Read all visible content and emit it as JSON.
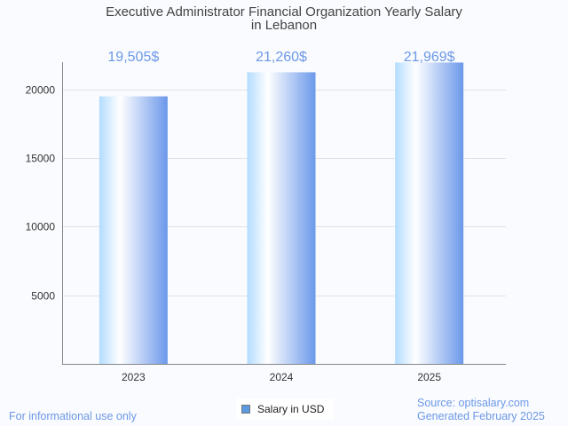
{
  "chart_data": {
    "type": "bar",
    "title_line1": "Executive Administrator Financial Organization Yearly Salary",
    "title_line2": "in Lebanon",
    "categories": [
      "2023",
      "2024",
      "2025"
    ],
    "values": [
      19505,
      21260,
      21969
    ],
    "data_labels": [
      "19,505$",
      "21,260$",
      "21,969$"
    ],
    "yticks": [
      5000,
      10000,
      15000,
      20000
    ],
    "ylim": [
      0,
      22000
    ],
    "xlabel": "",
    "ylabel": "",
    "grid": true,
    "legend": {
      "label": "Salary in USD",
      "placement": "bottom-center"
    },
    "colors": {
      "bar_light": "#b3dcff",
      "bar_dark": "#6b98ea",
      "label": "#6d98e8"
    }
  },
  "footer": {
    "left": "For informational use only",
    "source": "Source: optisalary.com",
    "generated": "Generated February 2025"
  }
}
